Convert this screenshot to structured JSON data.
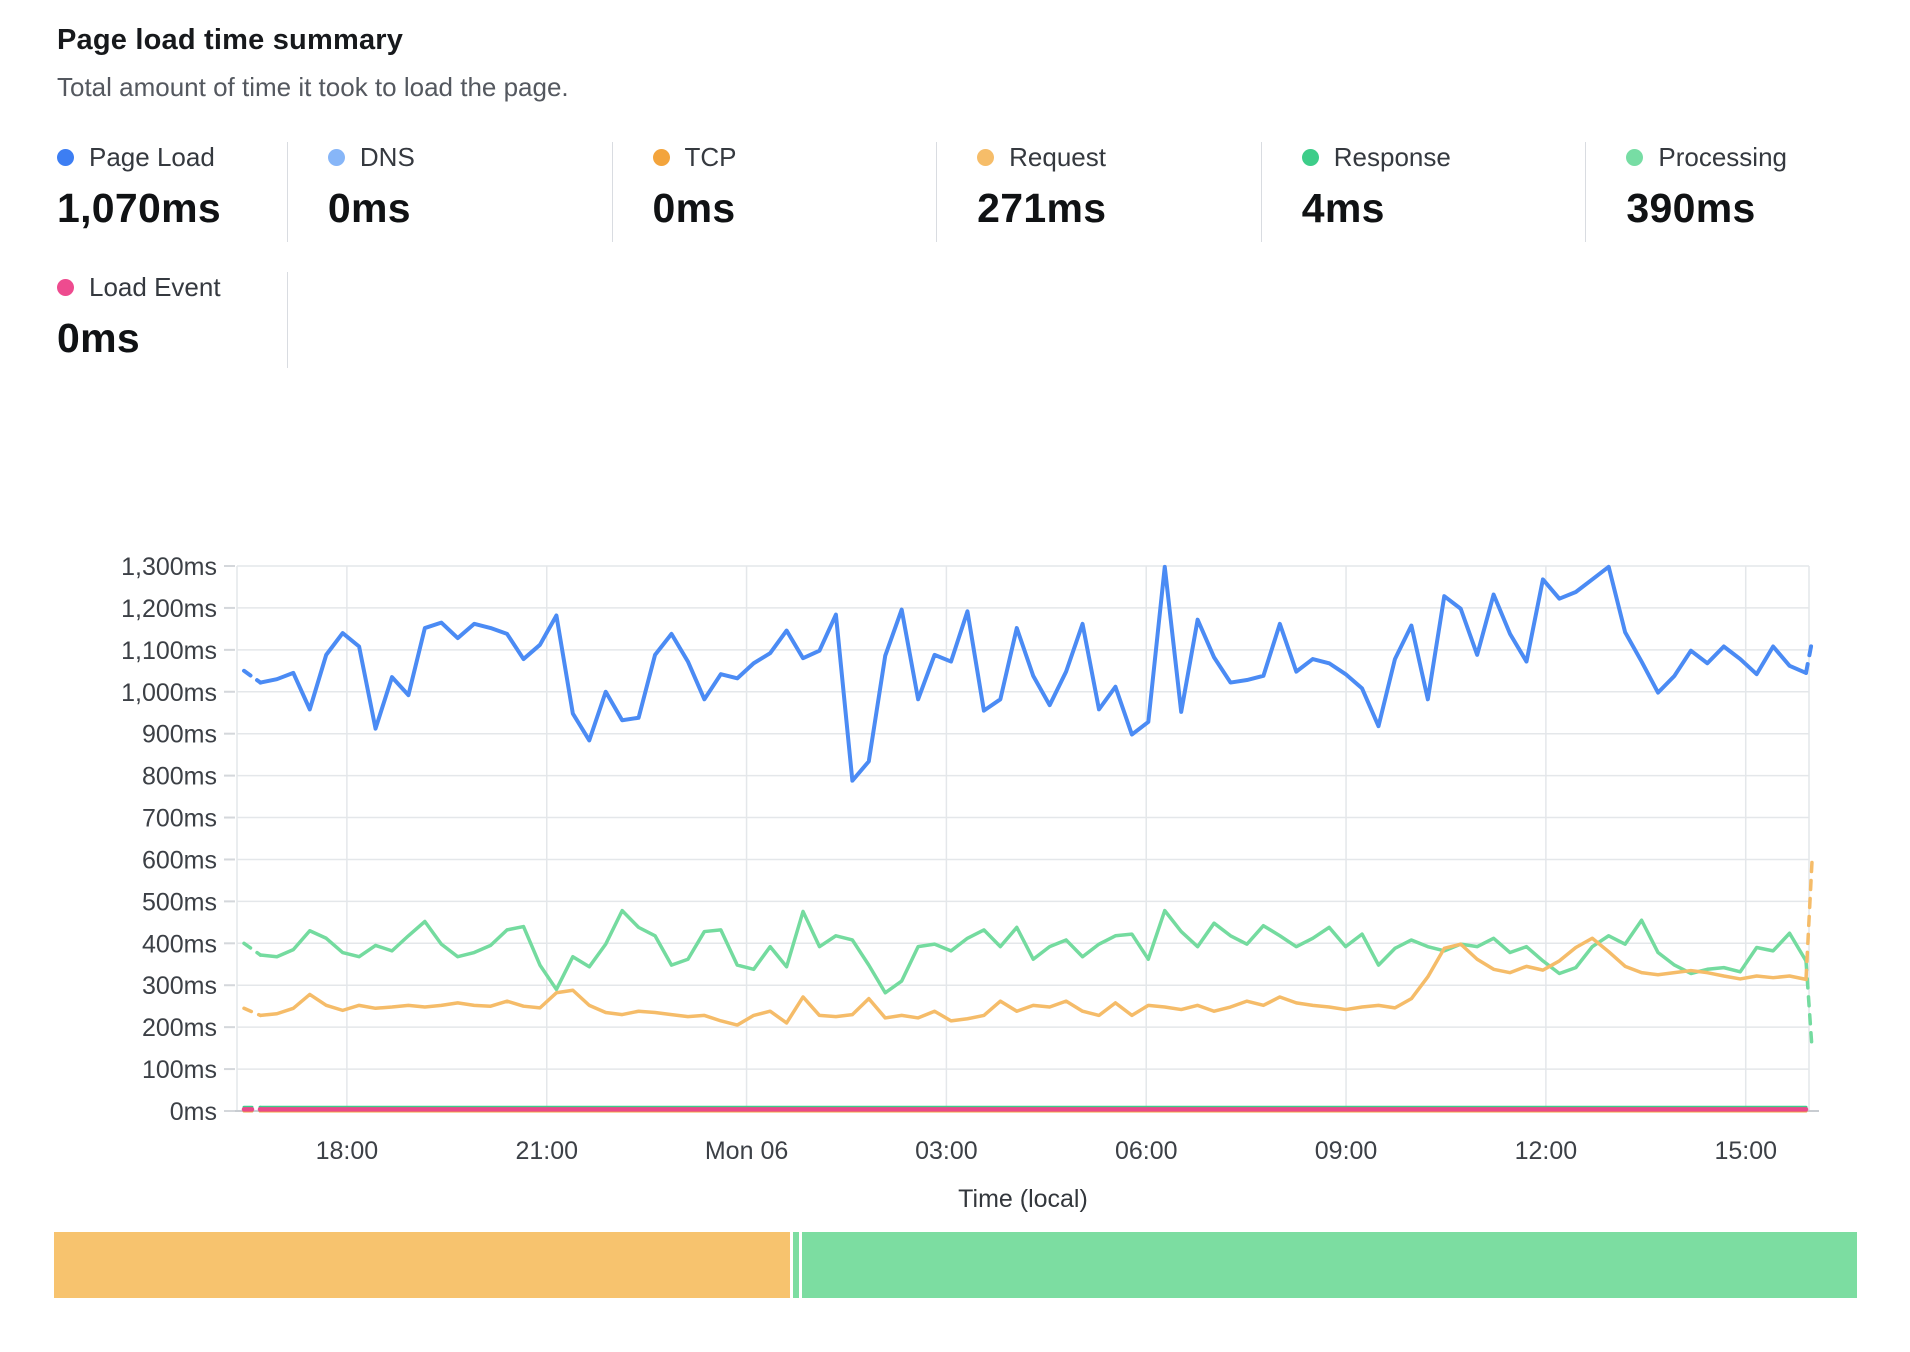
{
  "header": {
    "title": "Page load time summary",
    "subtitle": "Total amount of time it took to load the page."
  },
  "stats": {
    "row1": [
      {
        "id": "page-load",
        "label": "Page Load",
        "value": "1,070ms",
        "color": "#3d7ef3"
      },
      {
        "id": "dns",
        "label": "DNS",
        "value": "0ms",
        "color": "#87b6f8"
      },
      {
        "id": "tcp",
        "label": "TCP",
        "value": "0ms",
        "color": "#f3a43c"
      },
      {
        "id": "request",
        "label": "Request",
        "value": "271ms",
        "color": "#f6bd69"
      },
      {
        "id": "response",
        "label": "Response",
        "value": "4ms",
        "color": "#3dcd89"
      },
      {
        "id": "processing",
        "label": "Processing",
        "value": "390ms",
        "color": "#77dda4"
      }
    ],
    "row2": [
      {
        "id": "load-event",
        "label": "Load Event",
        "value": "0ms",
        "color": "#ee4b8f"
      }
    ]
  },
  "chart_data": {
    "type": "line",
    "xlabel": "Time (local)",
    "ylim": [
      0,
      1300
    ],
    "grid": true,
    "yticks": [
      {
        "label": "0ms",
        "value": 0
      },
      {
        "label": "100ms",
        "value": 100
      },
      {
        "label": "200ms",
        "value": 200
      },
      {
        "label": "300ms",
        "value": 300
      },
      {
        "label": "400ms",
        "value": 400
      },
      {
        "label": "500ms",
        "value": 500
      },
      {
        "label": "600ms",
        "value": 600
      },
      {
        "label": "700ms",
        "value": 700
      },
      {
        "label": "800ms",
        "value": 800
      },
      {
        "label": "900ms",
        "value": 900
      },
      {
        "label": "1,000ms",
        "value": 1000
      },
      {
        "label": "1,100ms",
        "value": 1100
      },
      {
        "label": "1,200ms",
        "value": 1200
      },
      {
        "label": "1,300ms",
        "value": 1300
      }
    ],
    "xticks": [
      {
        "label": "18:00",
        "hour": 18
      },
      {
        "label": "21:00",
        "hour": 21
      },
      {
        "label": "Mon 06",
        "hour": 24
      },
      {
        "label": "03:00",
        "hour": 27
      },
      {
        "label": "06:00",
        "hour": 30
      },
      {
        "label": "09:00",
        "hour": 33
      },
      {
        "label": "12:00",
        "hour": 36
      },
      {
        "label": "15:00",
        "hour": 39
      }
    ],
    "x_axis": {
      "start_hour": 16.35,
      "end_hour": 39.95
    },
    "series": [
      {
        "name": "DNS",
        "color": "#87b6f8",
        "width": 3,
        "flat": 0,
        "lead_dash": true
      },
      {
        "name": "TCP",
        "color": "#f3a43c",
        "width": 3,
        "flat": 0,
        "lead_dash": true
      },
      {
        "name": "Processing",
        "color": "#74db9f",
        "width": 3.5,
        "lead_dash": true,
        "tail_dash_value": 150,
        "values": [
          400,
          372,
          368,
          385,
          430,
          412,
          378,
          368,
          395,
          382,
          418,
          452,
          398,
          368,
          378,
          395,
          432,
          440,
          348,
          290,
          368,
          344,
          398,
          478,
          438,
          418,
          348,
          362,
          428,
          432,
          348,
          338,
          392,
          344,
          476,
          392,
          418,
          408,
          348,
          282,
          310,
          392,
          398,
          382,
          412,
          432,
          392,
          438,
          362,
          392,
          408,
          368,
          398,
          418,
          422,
          362,
          478,
          428,
          392,
          448,
          418,
          398,
          442,
          418,
          392,
          412,
          438,
          392,
          422,
          348,
          388,
          408,
          392,
          382,
          398,
          392,
          412,
          378,
          392,
          358,
          328,
          342,
          392,
          418,
          398,
          455,
          378,
          348,
          328,
          338,
          342,
          332,
          390,
          382,
          424,
          358
        ]
      },
      {
        "name": "Request",
        "color": "#f5bc69",
        "width": 3.5,
        "lead_dash": true,
        "tail_dash_value": 595,
        "values": [
          245,
          228,
          232,
          245,
          278,
          252,
          240,
          252,
          245,
          248,
          252,
          248,
          252,
          258,
          252,
          250,
          262,
          250,
          246,
          282,
          288,
          252,
          235,
          230,
          238,
          235,
          230,
          225,
          228,
          215,
          205,
          228,
          238,
          210,
          272,
          228,
          225,
          230,
          268,
          222,
          228,
          222,
          238,
          215,
          220,
          228,
          262,
          238,
          252,
          248,
          262,
          238,
          228,
          258,
          228,
          252,
          248,
          242,
          252,
          238,
          248,
          262,
          252,
          272,
          258,
          252,
          248,
          242,
          248,
          252,
          246,
          268,
          320,
          388,
          398,
          362,
          338,
          330,
          345,
          336,
          358,
          390,
          412,
          380,
          345,
          330,
          325,
          330,
          335,
          330,
          322,
          315,
          322,
          318,
          322,
          314
        ]
      },
      {
        "name": "Page Load",
        "color": "#4b8bf4",
        "width": 4,
        "lead_dash": true,
        "tail_dash_value": 1120,
        "values": [
          1050,
          1022,
          1030,
          1045,
          958,
          1088,
          1140,
          1108,
          912,
          1035,
          992,
          1152,
          1165,
          1128,
          1162,
          1152,
          1138,
          1078,
          1112,
          1182,
          948,
          884,
          1000,
          932,
          938,
          1088,
          1138,
          1072,
          982,
          1042,
          1032,
          1068,
          1092,
          1146,
          1080,
          1098,
          1184,
          788,
          834,
          1086,
          1196,
          982,
          1088,
          1072,
          1192,
          955,
          982,
          1152,
          1038,
          968,
          1048,
          1162,
          958,
          1012,
          898,
          928,
          1298,
          952,
          1172,
          1082,
          1022,
          1028,
          1038,
          1162,
          1048,
          1078,
          1068,
          1042,
          1008,
          918,
          1078,
          1158,
          982,
          1228,
          1198,
          1088,
          1232,
          1138,
          1072,
          1268,
          1222,
          1238,
          1268,
          1298,
          1142,
          1072,
          998,
          1038,
          1098,
          1068,
          1108,
          1078,
          1042,
          1108,
          1062,
          1045
        ]
      },
      {
        "name": "Response",
        "color": "#3dcd89",
        "width": 3,
        "flat": 9,
        "lead_dash": true
      },
      {
        "name": "Load Event",
        "color": "#e9498a",
        "width": 4.5,
        "flat": 4,
        "lead_dash": true
      }
    ],
    "footer_bar": {
      "segments": [
        {
          "name": "orange-segment",
          "color": "#f7c36e",
          "percent": 40.8
        },
        {
          "name": "green-sliver",
          "color": "#7cdda1",
          "percent": 0.35
        },
        {
          "name": "green-segment",
          "color": "#7cdda1",
          "percent": 58.5
        }
      ]
    }
  }
}
